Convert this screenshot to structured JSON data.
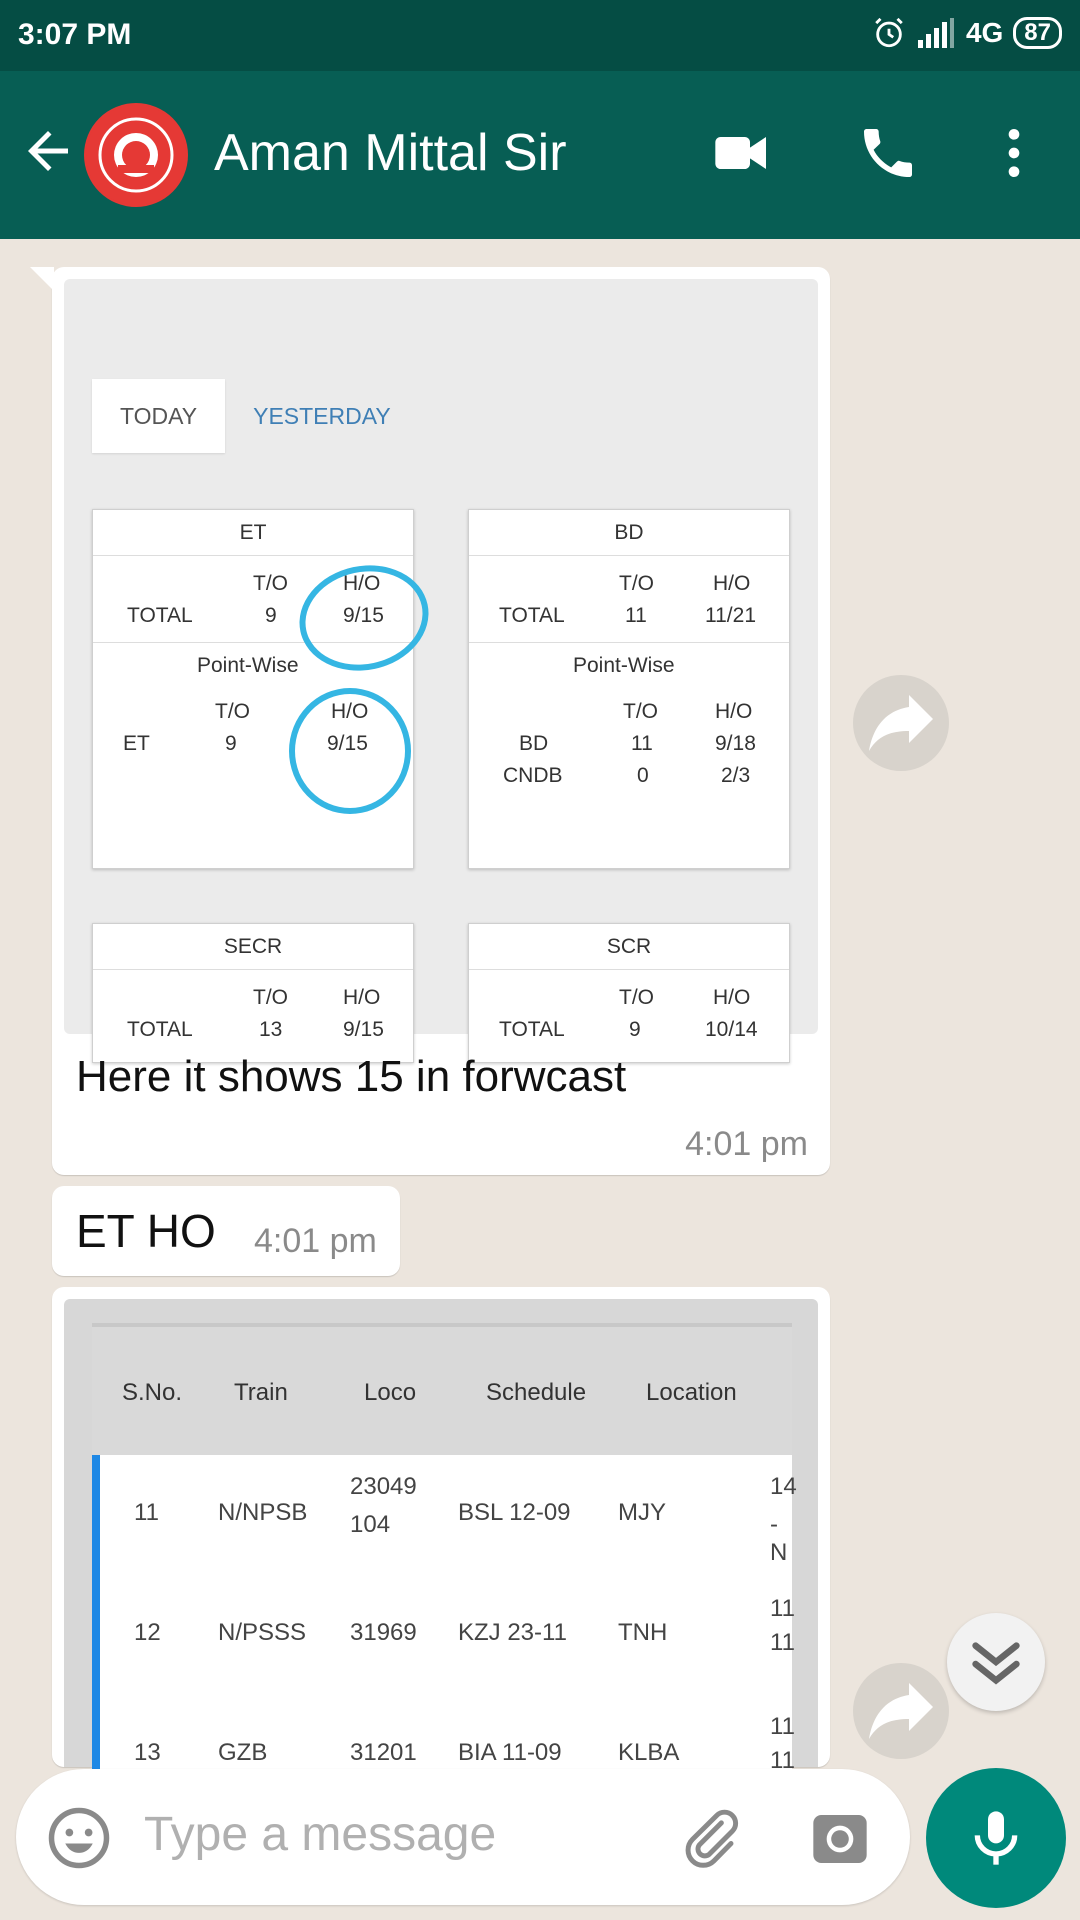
{
  "status_bar": {
    "time": "3:07 PM",
    "network": "4G",
    "battery": "87"
  },
  "header": {
    "contact_name": "Aman Mittal Sir"
  },
  "messages": [
    {
      "caption": "Here it shows 15 in forwcast",
      "time": "4:01 pm",
      "image": {
        "tabs": [
          "TODAY",
          "YESTERDAY"
        ],
        "cards": [
          {
            "title": "ET",
            "total_label": "TOTAL",
            "to_header": "T/O",
            "ho_header": "H/O",
            "total_to": "9",
            "total_ho": "9/15",
            "pointwise_label": "Point-Wise",
            "rows": [
              {
                "name": "ET",
                "to": "9",
                "ho": "9/15"
              }
            ]
          },
          {
            "title": "BD",
            "total_label": "TOTAL",
            "to_header": "T/O",
            "ho_header": "H/O",
            "total_to": "11",
            "total_ho": "11/21",
            "pointwise_label": "Point-Wise",
            "rows": [
              {
                "name": "BD",
                "to": "11",
                "ho": "9/18"
              },
              {
                "name": "CNDB",
                "to": "0",
                "ho": "2/3"
              }
            ]
          },
          {
            "title": "SECR",
            "total_label": "TOTAL",
            "to_header": "T/O",
            "ho_header": "H/O",
            "total_to": "13",
            "total_ho": "9/15"
          },
          {
            "title": "SCR",
            "total_label": "TOTAL",
            "to_header": "T/O",
            "ho_header": "H/O",
            "total_to": "9",
            "total_ho": "10/14"
          }
        ]
      }
    },
    {
      "text": "ET HO",
      "time": "4:01 pm"
    },
    {
      "image": {
        "headers": [
          "S.No.",
          "Train",
          "Loco",
          "Schedule",
          "Location"
        ],
        "rows": [
          {
            "sno": "11",
            "train": "N/NPSB",
            "loco1": "23049",
            "loco2": "104",
            "schedule": "BSL 12-09",
            "location": "MJY",
            "extra1": "14",
            "extra2": "-N"
          },
          {
            "sno": "12",
            "train": "N/PSSS",
            "loco1": "31969",
            "loco2": "",
            "schedule": "KZJ 23-11",
            "location": "TNH",
            "extra1": "11",
            "extra2": "11"
          },
          {
            "sno": "13",
            "train": "GZB",
            "loco1": "31201",
            "loco2": "",
            "schedule": "BIA 11-09",
            "location": "KLBA",
            "extra1": "11",
            "extra2": "11"
          }
        ]
      }
    }
  ],
  "input": {
    "placeholder": "Type a message"
  },
  "colors": {
    "header": "#075e54",
    "status_bar": "#054d44",
    "accent": "#00897b",
    "highlight": "#35b6e3"
  }
}
